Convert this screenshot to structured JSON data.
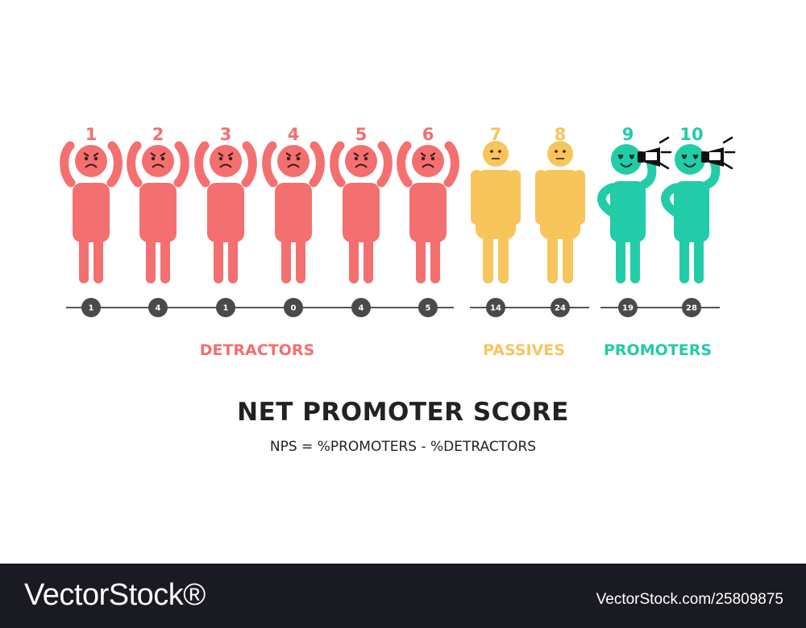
{
  "colors": {
    "detractor": "#f46f6f",
    "passive": "#f8c55c",
    "promoter": "#22cca8",
    "face_line": "#3a1a1a",
    "timeline": "#555555",
    "badge": "#4a4a4a"
  },
  "scale": [
    {
      "score": "1",
      "count": "1",
      "group": "detractor",
      "icon": "angry-person-icon"
    },
    {
      "score": "2",
      "count": "4",
      "group": "detractor",
      "icon": "angry-person-icon"
    },
    {
      "score": "3",
      "count": "1",
      "group": "detractor",
      "icon": "angry-person-icon"
    },
    {
      "score": "4",
      "count": "0",
      "group": "detractor",
      "icon": "angry-person-icon"
    },
    {
      "score": "5",
      "count": "4",
      "group": "detractor",
      "icon": "angry-person-icon"
    },
    {
      "score": "6",
      "count": "5",
      "group": "detractor",
      "icon": "angry-person-icon"
    },
    {
      "score": "7",
      "count": "14",
      "group": "passive",
      "icon": "neutral-person-icon"
    },
    {
      "score": "8",
      "count": "24",
      "group": "passive",
      "icon": "neutral-person-icon"
    },
    {
      "score": "9",
      "count": "19",
      "group": "promoter",
      "icon": "megaphone-person-icon"
    },
    {
      "score": "10",
      "count": "28",
      "group": "promoter",
      "icon": "megaphone-person-icon"
    }
  ],
  "groups": {
    "detractor": "DETRACTORS",
    "passive": "PASSIVES",
    "promoter": "PROMOTERS"
  },
  "title": "NET PROMOTER SCORE",
  "formula": "NPS = %PROMOTERS - %DETRACTORS",
  "footer": {
    "brand": "VectorStock®",
    "url": "VectorStock.com/25809875"
  }
}
